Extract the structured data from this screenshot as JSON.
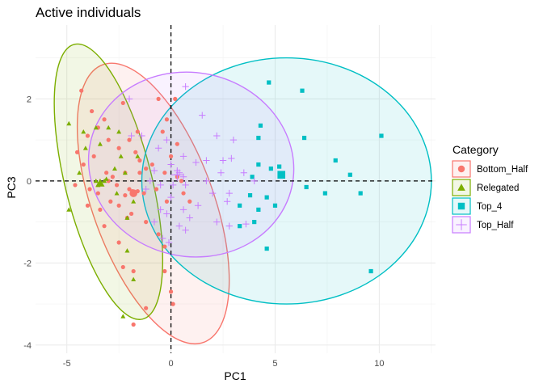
{
  "chart_data": {
    "type": "scatter",
    "title": "Active individuals",
    "xlabel": "PC1",
    "ylabel": "PC3",
    "xlim": [
      -6.5,
      12.7
    ],
    "ylim": [
      -4.2,
      3.8
    ],
    "xticks": [
      -5,
      0,
      5,
      10
    ],
    "yticks": [
      -4,
      -2,
      0,
      2
    ],
    "grid": true,
    "legend": {
      "title": "Category",
      "position": "right"
    },
    "reference_lines": {
      "x": 0,
      "y": 0,
      "style": "dashed"
    },
    "series": [
      {
        "name": "Bottom_Half",
        "color": "#F8766D",
        "marker": "circle",
        "points": [
          [
            -4.3,
            2.2
          ],
          [
            -3.8,
            1.7
          ],
          [
            -3.2,
            1.5
          ],
          [
            -2.3,
            1.9
          ],
          [
            -4.0,
            1.1
          ],
          [
            -3.5,
            1.3
          ],
          [
            -3.0,
            1.0
          ],
          [
            -2.5,
            0.8
          ],
          [
            -2.0,
            1.0
          ],
          [
            -1.7,
            0.7
          ],
          [
            -1.5,
            0.5
          ],
          [
            -4.5,
            0.7
          ],
          [
            -4.2,
            0.4
          ],
          [
            -3.7,
            0.6
          ],
          [
            -3.1,
            0.2
          ],
          [
            -2.8,
            0.1
          ],
          [
            -2.2,
            0.2
          ],
          [
            -1.5,
            0.2
          ],
          [
            -1.2,
            0.3
          ],
          [
            -0.9,
            0.4
          ],
          [
            -0.3,
            0.2
          ],
          [
            -4.6,
            -0.1
          ],
          [
            -3.9,
            -0.2
          ],
          [
            -3.5,
            -0.3
          ],
          [
            -3.0,
            0.0
          ],
          [
            -2.6,
            -0.1
          ],
          [
            -2.0,
            -0.2
          ],
          [
            -1.8,
            -0.3
          ],
          [
            -1.3,
            -0.3
          ],
          [
            -0.7,
            -0.2
          ],
          [
            -0.2,
            -0.5
          ],
          [
            -4.0,
            -0.6
          ],
          [
            -3.4,
            -0.7
          ],
          [
            -2.9,
            -0.5
          ],
          [
            -2.5,
            -0.6
          ],
          [
            -1.9,
            -0.8
          ],
          [
            -1.2,
            -1.0
          ],
          [
            -0.6,
            -1.3
          ],
          [
            -0.3,
            -1.6
          ],
          [
            -3.2,
            -1.1
          ],
          [
            -2.5,
            -1.5
          ],
          [
            -2.1,
            -0.9
          ],
          [
            -2.3,
            -2.1
          ],
          [
            -1.8,
            -2.2
          ],
          [
            -0.3,
            -2.2
          ],
          [
            0.0,
            -2.7
          ],
          [
            0.1,
            -3.0
          ],
          [
            -1.2,
            -3.1
          ],
          [
            -1.8,
            -3.5
          ],
          [
            0.3,
            0.1
          ],
          [
            0.5,
            0.0
          ],
          [
            0.6,
            -0.3
          ],
          [
            0.9,
            -0.5
          ],
          [
            0.3,
            0.9
          ],
          [
            0.0,
            0.6
          ],
          [
            -0.6,
            2.0
          ],
          [
            -0.2,
            1.5
          ],
          [
            -0.4,
            1.2
          ],
          [
            0.2,
            2.0
          ],
          [
            -1.6,
            -0.25
          ],
          [
            -1.85,
            -0.25
          ],
          [
            -2.2,
            -0.35
          ],
          [
            -1.6,
            1.2
          ]
        ]
      },
      {
        "name": "Relegated",
        "color": "#7CAE00",
        "marker": "triangle",
        "points": [
          [
            -4.9,
            1.4
          ],
          [
            -4.2,
            1.2
          ],
          [
            -3.6,
            1.3
          ],
          [
            -3.0,
            1.3
          ],
          [
            -2.5,
            1.2
          ],
          [
            -4.1,
            0.8
          ],
          [
            -3.4,
            0.9
          ],
          [
            -2.4,
            0.6
          ],
          [
            -1.6,
            0.6
          ],
          [
            -4.4,
            0.2
          ],
          [
            -3.6,
            0.0
          ],
          [
            -3.2,
            0.0
          ],
          [
            -2.7,
            0.3
          ],
          [
            -2.2,
            0.2
          ],
          [
            -3.5,
            -0.1
          ],
          [
            -3.4,
            -0.05
          ],
          [
            -3.1,
            0.05
          ],
          [
            -4.9,
            -0.7
          ],
          [
            -2.6,
            -0.3
          ],
          [
            -1.8,
            -0.5
          ],
          [
            -2.1,
            -0.9
          ],
          [
            -1.8,
            -2.4
          ],
          [
            -2.3,
            -3.3
          ],
          [
            -2.1,
            -1.7
          ]
        ]
      },
      {
        "name": "Top_4",
        "color": "#00BFC4",
        "marker": "square",
        "points": [
          [
            4.7,
            2.4
          ],
          [
            6.3,
            2.2
          ],
          [
            10.1,
            1.1
          ],
          [
            6.4,
            1.05
          ],
          [
            4.2,
            1.05
          ],
          [
            4.3,
            1.35
          ],
          [
            7.9,
            0.5
          ],
          [
            4.2,
            0.4
          ],
          [
            4.8,
            0.3
          ],
          [
            5.2,
            0.35
          ],
          [
            8.6,
            0.15
          ],
          [
            5.3,
            0.15
          ],
          [
            3.9,
            0.1
          ],
          [
            6.5,
            -0.15
          ],
          [
            7.4,
            -0.3
          ],
          [
            9.1,
            -0.3
          ],
          [
            4.6,
            -0.4
          ],
          [
            3.8,
            -0.35
          ],
          [
            3.3,
            -0.6
          ],
          [
            4.2,
            -0.7
          ],
          [
            4.0,
            -1.0
          ],
          [
            3.3,
            -1.1
          ],
          [
            4.6,
            -1.65
          ],
          [
            9.6,
            -2.2
          ],
          [
            5.0,
            -0.6
          ]
        ]
      },
      {
        "name": "Top_Half",
        "color": "#C77CFF",
        "marker": "plus",
        "points": [
          [
            0.7,
            2.3
          ],
          [
            -2.0,
            2.0
          ],
          [
            1.5,
            1.6
          ],
          [
            2.2,
            1.1
          ],
          [
            3.0,
            1.0
          ],
          [
            -1.9,
            1.1
          ],
          [
            -1.4,
            1.1
          ],
          [
            -0.2,
            1.0
          ],
          [
            -0.6,
            0.8
          ],
          [
            0.6,
            0.6
          ],
          [
            1.7,
            0.5
          ],
          [
            2.5,
            0.5
          ],
          [
            2.9,
            0.55
          ],
          [
            0.0,
            0.4
          ],
          [
            1.2,
            0.45
          ],
          [
            2.4,
            0.2
          ],
          [
            3.5,
            0.2
          ],
          [
            0.3,
            0.25
          ],
          [
            -0.8,
            0.25
          ],
          [
            0.6,
            0.1
          ],
          [
            1.7,
            0.0
          ],
          [
            -1.0,
            0.0
          ],
          [
            -0.5,
            -0.1
          ],
          [
            0.1,
            -0.1
          ],
          [
            0.7,
            -0.1
          ],
          [
            4.0,
            0.0
          ],
          [
            2.8,
            -0.3
          ],
          [
            -1.2,
            -0.2
          ],
          [
            0.0,
            -0.4
          ],
          [
            0.6,
            -0.7
          ],
          [
            1.3,
            -0.6
          ],
          [
            2.0,
            -0.3
          ],
          [
            2.7,
            -0.5
          ],
          [
            -0.5,
            -0.7
          ],
          [
            -0.2,
            -0.8
          ],
          [
            0.9,
            -0.9
          ],
          [
            2.8,
            -1.1
          ],
          [
            3.6,
            -1.05
          ],
          [
            2.2,
            -1.0
          ],
          [
            -0.8,
            -1.0
          ],
          [
            0.4,
            -1.1
          ],
          [
            -0.4,
            -1.4
          ],
          [
            0.7,
            -1.2
          ],
          [
            -0.1,
            -1.5
          ],
          [
            0.4,
            0.2
          ],
          [
            0.3,
            0.15
          ]
        ]
      }
    ],
    "ellipses": [
      {
        "series": "Bottom_Half",
        "center": [
          -0.85,
          -0.55
        ],
        "semi_axes": [
          2.9,
          3.6
        ],
        "rotation_deg": 20
      },
      {
        "series": "Relegated",
        "center": [
          -3.0,
          -0.02
        ],
        "semi_axes": [
          2.08,
          3.45
        ],
        "rotation_deg": 14
      },
      {
        "series": "Top_4",
        "center": [
          5.55,
          0.0
        ],
        "semi_axes": [
          6.95,
          3.0
        ],
        "rotation_deg": 0
      },
      {
        "series": "Top_Half",
        "center": [
          0.97,
          0.4
        ],
        "semi_axes": [
          4.95,
          2.24
        ],
        "rotation_deg": -12.5
      }
    ],
    "centroids": [
      {
        "series": "Bottom_Half",
        "point": [
          -1.8,
          -0.3
        ]
      },
      {
        "series": "Relegated",
        "point": [
          -3.4,
          -0.05
        ]
      },
      {
        "series": "Top_4",
        "point": [
          5.3,
          0.15
        ]
      },
      {
        "series": "Top_Half",
        "point": [
          0.3,
          0.15
        ]
      }
    ]
  }
}
